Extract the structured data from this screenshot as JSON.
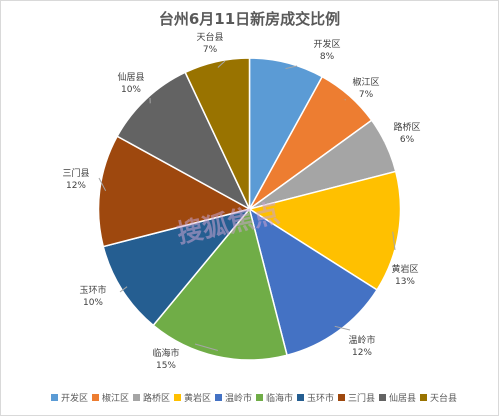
{
  "chart_data": {
    "type": "pie",
    "title": "台州6月11日新房成交比例",
    "legend_position": "bottom",
    "slices": [
      {
        "name": "开发区",
        "value": 8,
        "label": "8%",
        "color": "#5B9BD5"
      },
      {
        "name": "椒江区",
        "value": 7,
        "label": "7%",
        "color": "#ED7D31"
      },
      {
        "name": "路桥区",
        "value": 6,
        "label": "6%",
        "color": "#A5A5A5"
      },
      {
        "name": "黄岩区",
        "value": 13,
        "label": "13%",
        "color": "#FFC000"
      },
      {
        "name": "温岭市",
        "value": 12,
        "label": "12%",
        "color": "#4472C4"
      },
      {
        "name": "临海市",
        "value": 15,
        "label": "15%",
        "color": "#70AD47"
      },
      {
        "name": "玉环市",
        "value": 10,
        "label": "10%",
        "color": "#255E91"
      },
      {
        "name": "三门县",
        "value": 12,
        "label": "12%",
        "color": "#9E480E"
      },
      {
        "name": "仙居县",
        "value": 10,
        "label": "10%",
        "color": "#636363"
      },
      {
        "name": "天台县",
        "value": 7,
        "label": "7%",
        "color": "#997300"
      }
    ]
  },
  "watermark": "搜狐焦点"
}
